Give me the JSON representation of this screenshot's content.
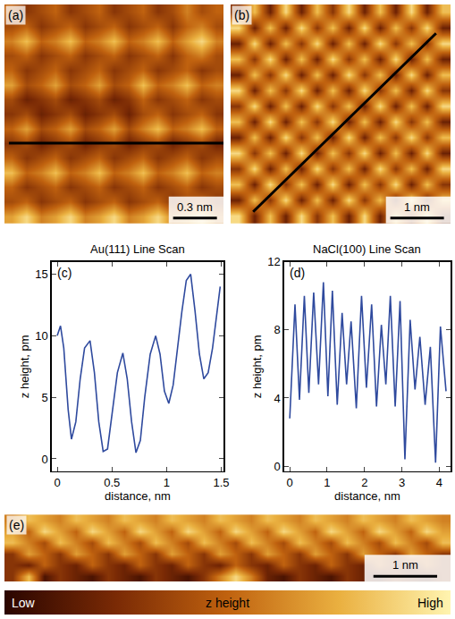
{
  "chart_data": [
    {
      "type": "heatmap",
      "label": "(a)",
      "xlim": [
        0,
        1.5
      ],
      "ylim": [
        0,
        1.5
      ],
      "tick_labels": false,
      "scale_bar": {
        "value": 0.3,
        "label": "0.3 nm"
      },
      "scan_line": [
        [
          0.03,
          0.55
        ],
        [
          1.5,
          0.55
        ]
      ],
      "z": [
        [
          7,
          9,
          6,
          7,
          9,
          6,
          7,
          9,
          6,
          7,
          9,
          6,
          7,
          9,
          6
        ],
        [
          4,
          5,
          3,
          4,
          5,
          3,
          4,
          5,
          3,
          4,
          5,
          3,
          4,
          5,
          3
        ],
        [
          5,
          3,
          4,
          5,
          3,
          4,
          5,
          3,
          4,
          5,
          3,
          4,
          5,
          3,
          4
        ],
        [
          8,
          5,
          6,
          8,
          5,
          6,
          8,
          5,
          6,
          8,
          5,
          6,
          8,
          5,
          6
        ],
        [
          5,
          3,
          4,
          5,
          3,
          4,
          5,
          3,
          4,
          5,
          3,
          4,
          5,
          3,
          4
        ],
        [
          3,
          4,
          2,
          3,
          4,
          2,
          3,
          4,
          2,
          3,
          4,
          2,
          3,
          4,
          2
        ],
        [
          5,
          7,
          4,
          5,
          7,
          4,
          5,
          7,
          4,
          6,
          8,
          5,
          6,
          8,
          5
        ],
        [
          3,
          4,
          2,
          3,
          4,
          2,
          3,
          4,
          2,
          4,
          5,
          3,
          4,
          5,
          3
        ],
        [
          4,
          2,
          3,
          4,
          2,
          3,
          4,
          2,
          3,
          5,
          3,
          4,
          5,
          3,
          4
        ],
        [
          7,
          4,
          5,
          7,
          4,
          5,
          7,
          4,
          5,
          8,
          5,
          6,
          8,
          5,
          6
        ],
        [
          5,
          3,
          4,
          5,
          3,
          4,
          5,
          3,
          4,
          5,
          3,
          4,
          5,
          3,
          4
        ],
        [
          4,
          5,
          3,
          4,
          5,
          3,
          4,
          5,
          3,
          4,
          5,
          3,
          5,
          6,
          4
        ],
        [
          6,
          8,
          5,
          6,
          8,
          5,
          6,
          8,
          5,
          6,
          8,
          5,
          7,
          9,
          6
        ],
        [
          4,
          5,
          3,
          4,
          5,
          3,
          4,
          5,
          3,
          4,
          5,
          3,
          5,
          6,
          4
        ],
        [
          5,
          3,
          4,
          5,
          3,
          4,
          5,
          3,
          4,
          5,
          3,
          4,
          6,
          4,
          5
        ]
      ]
    },
    {
      "type": "heatmap",
      "label": "(b)",
      "xlim": [
        0,
        4.1
      ],
      "ylim": [
        0,
        4.1
      ],
      "tick_labels": false,
      "scale_bar": {
        "value": 1,
        "label": "1 nm"
      },
      "scan_line": [
        [
          0.42,
          0.22
        ],
        [
          3.83,
          3.56
        ]
      ],
      "z": [
        [
          9,
          2,
          8,
          2,
          9,
          3,
          8,
          2,
          9,
          2,
          8,
          3,
          9,
          2
        ],
        [
          2,
          8,
          3,
          9,
          2,
          8,
          2,
          9,
          3,
          8,
          2,
          9,
          2,
          8
        ],
        [
          8,
          2,
          9,
          3,
          8,
          2,
          9,
          2,
          8,
          3,
          9,
          2,
          8,
          3
        ],
        [
          3,
          9,
          2,
          8,
          2,
          9,
          3,
          8,
          2,
          9,
          3,
          8,
          2,
          9
        ],
        [
          9,
          3,
          8,
          2,
          9,
          2,
          8,
          3,
          9,
          2,
          8,
          2,
          9,
          2
        ],
        [
          2,
          8,
          2,
          9,
          3,
          8,
          2,
          9,
          2,
          8,
          3,
          9,
          3,
          8
        ],
        [
          8,
          2,
          9,
          2,
          8,
          3,
          9,
          2,
          8,
          2,
          9,
          3,
          8,
          2
        ],
        [
          3,
          9,
          2,
          8,
          2,
          9,
          3,
          8,
          2,
          9,
          2,
          8,
          2,
          9
        ],
        [
          9,
          2,
          8,
          3,
          9,
          2,
          8,
          2,
          9,
          3,
          8,
          2,
          9,
          3
        ],
        [
          2,
          8,
          3,
          9,
          2,
          8,
          2,
          9,
          3,
          8,
          2,
          9,
          2,
          8
        ],
        [
          8,
          3,
          9,
          2,
          8,
          2,
          9,
          3,
          8,
          2,
          9,
          2,
          8,
          2
        ],
        [
          2,
          9,
          2,
          8,
          3,
          9,
          2,
          8,
          2,
          9,
          3,
          8,
          3,
          9
        ],
        [
          9,
          2,
          8,
          2,
          9,
          3,
          8,
          2,
          9,
          2,
          8,
          3,
          9,
          2
        ],
        [
          3,
          8,
          2,
          9,
          2,
          8,
          3,
          9,
          2,
          8,
          2,
          9,
          2,
          8
        ]
      ]
    },
    {
      "type": "line",
      "label": "(c)",
      "title": "Au(111) Line Scan",
      "x_label": "distance, nm",
      "y_label": "z height, pm",
      "color": "#2f4a9e",
      "xlim": [
        -0.05,
        1.52
      ],
      "ylim": [
        -1,
        16
      ],
      "xticks": [
        0,
        0.5,
        1,
        1.5
      ],
      "yticks": [
        0,
        5,
        10,
        15
      ],
      "x": [
        0,
        0.03,
        0.06,
        0.1,
        0.13,
        0.17,
        0.21,
        0.25,
        0.3,
        0.34,
        0.38,
        0.42,
        0.46,
        0.5,
        0.55,
        0.6,
        0.64,
        0.68,
        0.72,
        0.76,
        0.8,
        0.85,
        0.9,
        0.94,
        0.98,
        1.02,
        1.06,
        1.1,
        1.14,
        1.18,
        1.22,
        1.26,
        1.3,
        1.34,
        1.38,
        1.42,
        1.46,
        1.49
      ],
      "values": [
        10,
        10.8,
        9,
        4,
        1.6,
        3,
        6.5,
        9,
        9.6,
        7,
        3,
        0.6,
        0.8,
        3.5,
        7,
        8.6,
        6.5,
        3,
        0.5,
        1.5,
        5,
        8.5,
        10,
        8.5,
        5.5,
        4.5,
        6,
        9,
        12,
        14.5,
        15,
        12,
        8.5,
        6.5,
        7,
        9,
        12,
        14
      ]
    },
    {
      "type": "line",
      "label": "(d)",
      "title": "NaCl(100) Line Scan",
      "x_label": "distance, nm",
      "y_label": "z height, pm",
      "color": "#2f4a9e",
      "xlim": [
        -0.15,
        4.3
      ],
      "ylim": [
        -0.3,
        12
      ],
      "xticks": [
        0,
        1,
        2,
        3,
        4
      ],
      "yticks": [
        0,
        4,
        8,
        12
      ],
      "x": [
        0,
        0.14,
        0.26,
        0.39,
        0.51,
        0.64,
        0.77,
        0.9,
        1.02,
        1.14,
        1.27,
        1.4,
        1.52,
        1.64,
        1.78,
        1.92,
        2.05,
        2.19,
        2.32,
        2.45,
        2.57,
        2.69,
        2.82,
        2.95,
        3.08,
        3.22,
        3.35,
        3.48,
        3.62,
        3.76,
        3.9,
        4.03,
        4.18
      ],
      "values": [
        2.8,
        9.5,
        3.9,
        10,
        4.3,
        10.2,
        4.8,
        10.8,
        4.1,
        10.3,
        3.6,
        9.0,
        4.8,
        8.5,
        3.4,
        10,
        4.6,
        9.5,
        3.5,
        8.3,
        4.8,
        10,
        3.5,
        9.7,
        0.4,
        8.6,
        4.5,
        7.6,
        3.6,
        7.0,
        0.2,
        8.2,
        4.4
      ]
    },
    {
      "type": "heatmap",
      "label": "(e)",
      "xlim": [
        0,
        7
      ],
      "ylim": [
        0,
        1.05
      ],
      "tick_labels": false,
      "scale_bar": {
        "value": 1,
        "label": "1 nm"
      },
      "z": [
        [
          3,
          8,
          1,
          3,
          2,
          1,
          3,
          2,
          1,
          3,
          2,
          1,
          3,
          6,
          9,
          6,
          2,
          1,
          3,
          2,
          1,
          3,
          2,
          1,
          3,
          2,
          1,
          3
        ],
        [
          3,
          2,
          5,
          3,
          2,
          5,
          3,
          2,
          5,
          3,
          2,
          5,
          3,
          2,
          5,
          3,
          2,
          5,
          3,
          2,
          5,
          3,
          2,
          5,
          3,
          2,
          5,
          3
        ],
        [
          3,
          7,
          5,
          3,
          7,
          5,
          3,
          7,
          5,
          3,
          7,
          5,
          3,
          7,
          5,
          3,
          7,
          5,
          3,
          7,
          5,
          3,
          7,
          5,
          3,
          7,
          5,
          3
        ],
        [
          8,
          6,
          4,
          8,
          6,
          4,
          8,
          6,
          4,
          8,
          6,
          4,
          8,
          6,
          4,
          8,
          6,
          4,
          8,
          6,
          4,
          8,
          6,
          4,
          8,
          6,
          4,
          8
        ],
        [
          7,
          5,
          9,
          7,
          5,
          9,
          7,
          5,
          9,
          7,
          5,
          9,
          7,
          5,
          9,
          7,
          5,
          9,
          7,
          5,
          9,
          7,
          5,
          9,
          7,
          5,
          9,
          7
        ],
        [
          6,
          8,
          7,
          6,
          8,
          7,
          6,
          8,
          7,
          6,
          8,
          7,
          6,
          8,
          7,
          6,
          8,
          7,
          6,
          8,
          7,
          6,
          8,
          7,
          6,
          8,
          7,
          6
        ]
      ]
    }
  ],
  "colorbar": {
    "title": "z height",
    "zlim": [
      0,
      10
    ],
    "ticks": [
      {
        "value": 0,
        "label": "Low"
      },
      {
        "value": 10,
        "label": "High"
      }
    ]
  }
}
